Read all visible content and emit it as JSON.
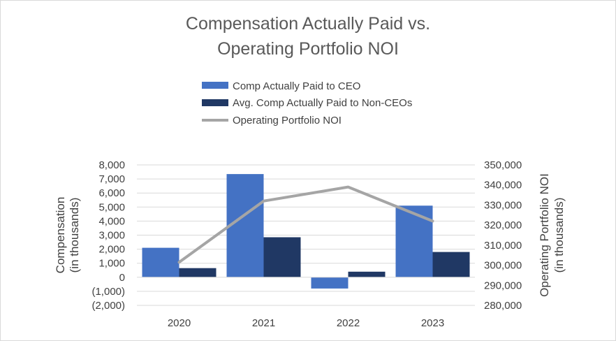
{
  "chart_data": {
    "type": "bar",
    "title_lines": [
      "Compensation Actually Paid vs.",
      "Operating Portfolio NOI"
    ],
    "categories": [
      "2020",
      "2021",
      "2022",
      "2023"
    ],
    "series": [
      {
        "name": "Comp Actually Paid to CEO",
        "kind": "bar",
        "axis": "left",
        "color": "#4472c4",
        "values": [
          2100,
          7350,
          -800,
          5100
        ]
      },
      {
        "name": "Avg. Comp Actually Paid to Non-CEOs",
        "kind": "bar",
        "axis": "left",
        "color": "#203864",
        "values": [
          650,
          2850,
          400,
          1800
        ]
      },
      {
        "name": "Operating Portfolio NOI",
        "kind": "line",
        "axis": "right",
        "color": "#a5a5a5",
        "values": [
          301500,
          332000,
          339000,
          322000
        ]
      }
    ],
    "y_left": {
      "label_lines": [
        "Compensation",
        "(in thousands)"
      ],
      "lim": [
        -2000,
        8000
      ],
      "ticks": [
        -2000,
        -1000,
        0,
        1000,
        2000,
        3000,
        4000,
        5000,
        6000,
        7000,
        8000
      ],
      "tick_labels": [
        "(2,000)",
        "(1,000)",
        "0",
        "1,000",
        "2,000",
        "3,000",
        "4,000",
        "5,000",
        "6,000",
        "7,000",
        "8,000"
      ]
    },
    "y_right": {
      "label_lines": [
        "Operating Portfolio NOI",
        "(in thousands)"
      ],
      "lim": [
        280000,
        350000
      ],
      "ticks": [
        280000,
        290000,
        300000,
        310000,
        320000,
        330000,
        340000,
        350000
      ],
      "tick_labels": [
        "280,000",
        "290,000",
        "300,000",
        "310,000",
        "320,000",
        "330,000",
        "340,000",
        "350,000"
      ]
    },
    "gridlines": true,
    "legend_position": "top-center"
  }
}
